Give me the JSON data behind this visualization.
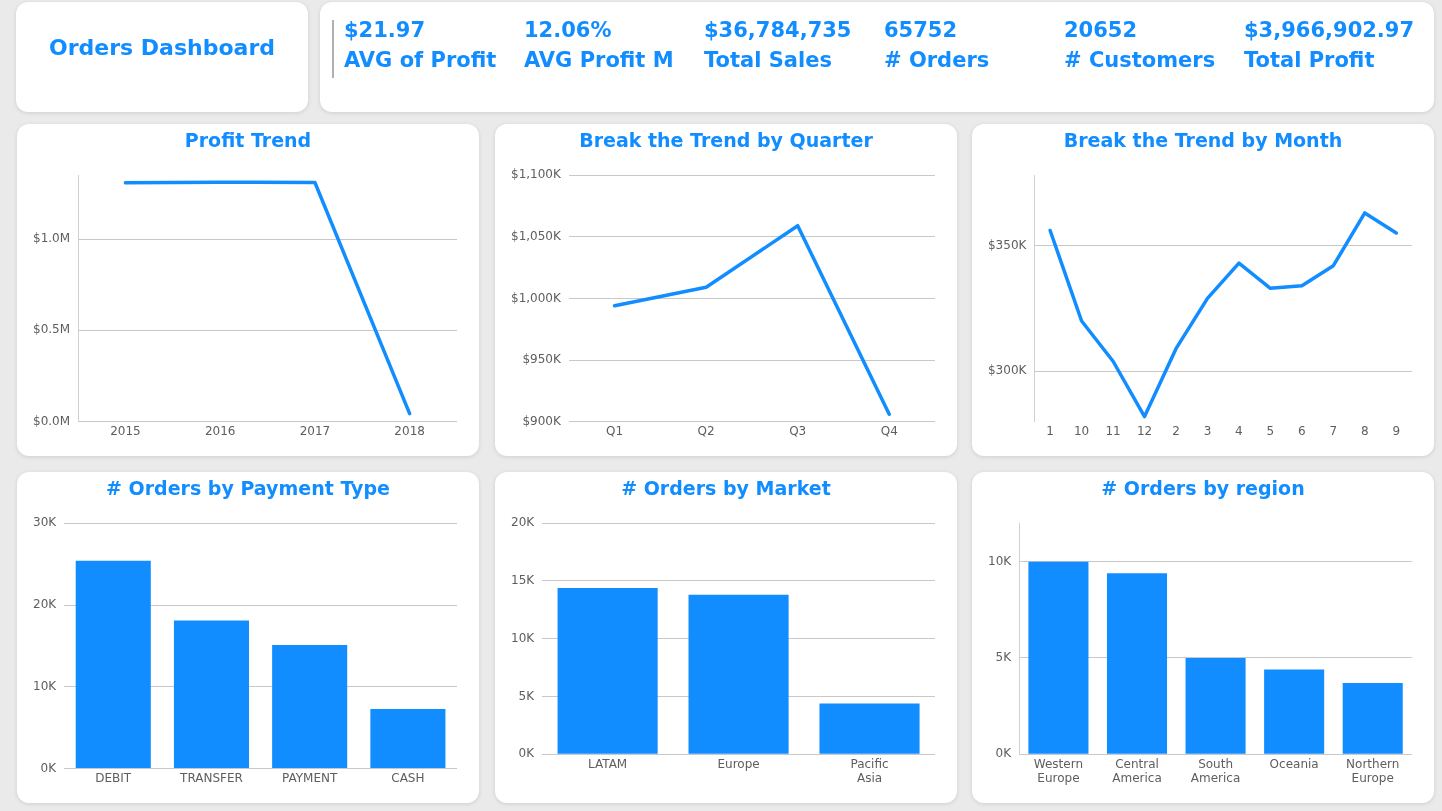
{
  "chart_data": [
    {
      "type": "other",
      "title": "Orders Dashboard"
    },
    {
      "type": "other",
      "annotations": [
        "$21.97",
        "AVG of Profit",
        "12.06%",
        "AVG Profit M",
        "$36,784,735",
        "Total Sales",
        "65752",
        "# Orders",
        "20652",
        "# Customers",
        "$3,966,902.97",
        "Total Profit"
      ]
    },
    {
      "type": "line",
      "title": "Profit Trend",
      "categories": [
        "2015",
        "2016",
        "2017",
        "2018"
      ],
      "series": [
        {
          "color": "#118dff",
          "values": [
            1308000,
            1312000,
            1310000,
            44000
          ]
        }
      ],
      "ylim": [
        0,
        1350000
      ],
      "yticks": [
        {
          "value": 0,
          "label": "$0.0M"
        },
        {
          "value": 500000,
          "label": "$0.5M"
        },
        {
          "value": 1000000,
          "label": "$1.0M"
        }
      ],
      "grid": "y"
    },
    {
      "type": "line",
      "title": "Break the Trend by Quarter",
      "categories": [
        "Q1",
        "Q2",
        "Q3",
        "Q4"
      ],
      "series": [
        {
          "color": "#118dff",
          "values": [
            994000,
            1009000,
            1059000,
            906000
          ]
        }
      ],
      "ylim": [
        900000,
        1100000
      ],
      "yticks": [
        {
          "value": 900000,
          "label": "$900K"
        },
        {
          "value": 950000,
          "label": "$950K"
        },
        {
          "value": 1000000,
          "label": "$1,000K"
        },
        {
          "value": 1050000,
          "label": "$1,050K"
        },
        {
          "value": 1100000,
          "label": "$1,100K"
        }
      ],
      "grid": "y"
    },
    {
      "type": "line",
      "title": "Break the Trend by Month",
      "categories": [
        "1",
        "10",
        "11",
        "12",
        "2",
        "3",
        "4",
        "5",
        "6",
        "7",
        "8",
        "9"
      ],
      "series": [
        {
          "color": "#118dff",
          "values": [
            356000,
            320000,
            304000,
            282000,
            309000,
            329000,
            343000,
            333000,
            334000,
            342000,
            363000,
            355000
          ]
        }
      ],
      "ylim": [
        280000,
        378000
      ],
      "yticks": [
        {
          "value": 300000,
          "label": "$300K"
        },
        {
          "value": 350000,
          "label": "$350K"
        }
      ],
      "grid": "y"
    },
    {
      "type": "bar",
      "title": "# Orders by Payment Type",
      "categories": [
        "DEBIT",
        "TRANSFER",
        "PAYMENT",
        "CASH"
      ],
      "series": [
        {
          "color": "#118dff",
          "values": [
            25400,
            18100,
            15100,
            7300
          ]
        }
      ],
      "ylim": [
        0,
        30000
      ],
      "yticks": [
        {
          "value": 0,
          "label": "0K"
        },
        {
          "value": 10000,
          "label": "10K"
        },
        {
          "value": 20000,
          "label": "20K"
        },
        {
          "value": 30000,
          "label": "30K"
        }
      ],
      "grid": "y"
    },
    {
      "type": "bar",
      "title": "# Orders by Market",
      "categories": [
        "LATAM",
        "Europe",
        "Pacific Asia"
      ],
      "series": [
        {
          "color": "#118dff",
          "values": [
            14400,
            13800,
            4400
          ]
        }
      ],
      "ylim": [
        0,
        20000
      ],
      "yticks": [
        {
          "value": 0,
          "label": "0K"
        },
        {
          "value": 5000,
          "label": "5K"
        },
        {
          "value": 10000,
          "label": "10K"
        },
        {
          "value": 15000,
          "label": "15K"
        },
        {
          "value": 20000,
          "label": "20K"
        }
      ],
      "grid": "y"
    },
    {
      "type": "bar",
      "title": "# Orders by region",
      "categories": [
        "Western Europe",
        "Central America",
        "South America",
        "Oceania",
        "Northern Europe"
      ],
      "series": [
        {
          "color": "#118dff",
          "values": [
            10000,
            9400,
            5000,
            4400,
            3700
          ]
        }
      ],
      "ylim": [
        0,
        12000
      ],
      "yticks": [
        {
          "value": 0,
          "label": "0K"
        },
        {
          "value": 5000,
          "label": "5K"
        },
        {
          "value": 10000,
          "label": "10K"
        }
      ],
      "grid": "y"
    }
  ]
}
